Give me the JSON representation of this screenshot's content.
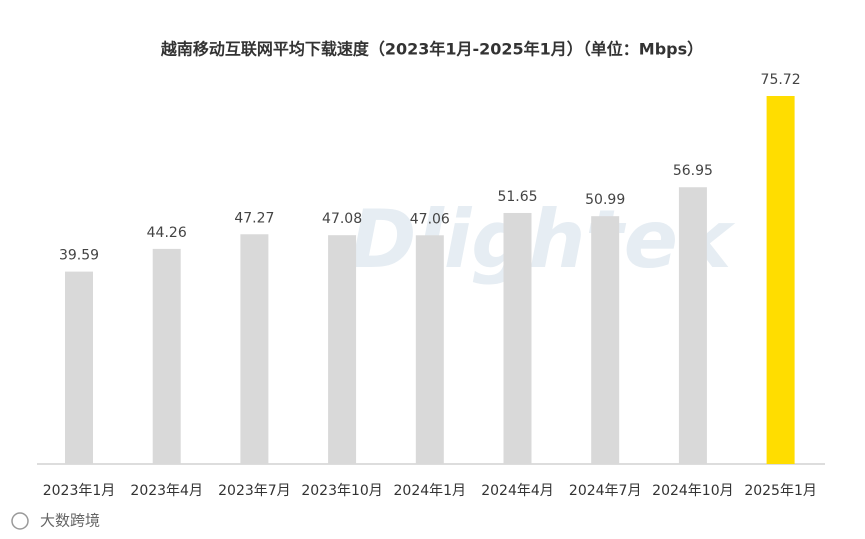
{
  "chart_data": {
    "type": "bar",
    "title": "越南移动互联网平均下载速度（2023年1月-2025年1月）（单位：Mbps）",
    "categories": [
      "2023年1月",
      "2023年4月",
      "2023年7月",
      "2023年10月",
      "2024年1月",
      "2024年4月",
      "2024年7月",
      "2024年10月",
      "2025年1月"
    ],
    "values": [
      39.59,
      44.26,
      47.27,
      47.08,
      47.06,
      51.65,
      50.99,
      56.95,
      75.72
    ],
    "colors": [
      "#d9d9d9",
      "#d9d9d9",
      "#d9d9d9",
      "#d9d9d9",
      "#d9d9d9",
      "#d9d9d9",
      "#d9d9d9",
      "#d9d9d9",
      "#ffdd00"
    ],
    "watermark": "Dlightek",
    "logo_text": "大数跨境"
  }
}
